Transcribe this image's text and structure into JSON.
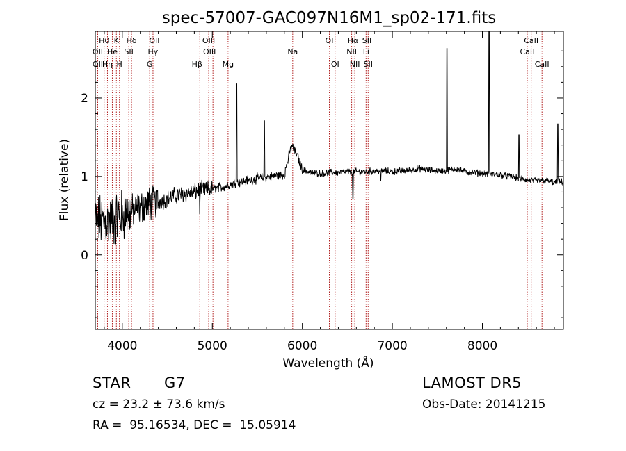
{
  "chart_data": {
    "type": "line",
    "title": "spec-57007-GAC097N16M1_sp02-171.fits",
    "xlabel": "Wavelength (Å)",
    "ylabel": "Flux (relative)",
    "xlim": [
      3700,
      8900
    ],
    "ylim": [
      -0.95,
      2.85
    ],
    "x_ticks": [
      4000,
      5000,
      6000,
      7000,
      8000
    ],
    "y_ticks": [
      0,
      1,
      2
    ],
    "grid": false,
    "line_color": "#000000",
    "marker_color": "#b22222",
    "continuum_anchors": [
      [
        3700,
        0.45
      ],
      [
        3800,
        0.42
      ],
      [
        3900,
        0.43
      ],
      [
        4000,
        0.52
      ],
      [
        4100,
        0.55
      ],
      [
        4200,
        0.6
      ],
      [
        4300,
        0.66
      ],
      [
        4400,
        0.68
      ],
      [
        4500,
        0.71
      ],
      [
        4600,
        0.76
      ],
      [
        4700,
        0.78
      ],
      [
        4800,
        0.8
      ],
      [
        4900,
        0.83
      ],
      [
        5000,
        0.84
      ],
      [
        5100,
        0.86
      ],
      [
        5200,
        0.9
      ],
      [
        5300,
        0.93
      ],
      [
        5400,
        0.95
      ],
      [
        5500,
        0.97
      ],
      [
        5600,
        0.99
      ],
      [
        5700,
        1.01
      ],
      [
        5800,
        1.02
      ],
      [
        5880,
        1.4
      ],
      [
        5950,
        1.25
      ],
      [
        6000,
        1.08
      ],
      [
        6100,
        1.05
      ],
      [
        6200,
        1.04
      ],
      [
        6300,
        1.05
      ],
      [
        6400,
        1.05
      ],
      [
        6500,
        1.06
      ],
      [
        6600,
        1.06
      ],
      [
        6700,
        1.06
      ],
      [
        6800,
        1.07
      ],
      [
        6900,
        1.07
      ],
      [
        7000,
        1.06
      ],
      [
        7100,
        1.07
      ],
      [
        7200,
        1.08
      ],
      [
        7300,
        1.1
      ],
      [
        7400,
        1.08
      ],
      [
        7500,
        1.07
      ],
      [
        7600,
        1.07
      ],
      [
        7700,
        1.1
      ],
      [
        7800,
        1.06
      ],
      [
        7900,
        1.05
      ],
      [
        8000,
        1.04
      ],
      [
        8100,
        1.03
      ],
      [
        8200,
        1.02
      ],
      [
        8300,
        1.0
      ],
      [
        8400,
        0.98
      ],
      [
        8500,
        0.95
      ],
      [
        8600,
        0.94
      ],
      [
        8700,
        0.95
      ],
      [
        8800,
        0.92
      ],
      [
        8900,
        0.93
      ]
    ],
    "spikes": [
      [
        5270,
        2.18
      ],
      [
        5578,
        1.71
      ],
      [
        7606,
        2.63
      ],
      [
        8075,
        2.85
      ],
      [
        8405,
        1.53
      ],
      [
        8838,
        1.67
      ],
      [
        4860,
        0.52
      ],
      [
        6563,
        0.72
      ],
      [
        6870,
        0.95
      ]
    ],
    "lines": [
      {
        "label": "Hθ",
        "x": 3798,
        "row": 1,
        "dx": 0
      },
      {
        "label": "K",
        "x": 3934,
        "row": 1,
        "dx": 0
      },
      {
        "label": "Hδ",
        "x": 4102,
        "row": 1,
        "dx": 0
      },
      {
        "label": "OII",
        "x": 4341,
        "row": 1,
        "dx": 2
      },
      {
        "label": "OIII",
        "x": 4960,
        "row": 1,
        "dx": 0
      },
      {
        "label": "OI",
        "x": 6300,
        "row": 1,
        "dx": 0
      },
      {
        "label": "Hα",
        "x": 6563,
        "row": 1,
        "dx": 0
      },
      {
        "label": "SII",
        "x": 6717,
        "row": 1,
        "dx": 0
      },
      {
        "label": "CaII",
        "x": 8542,
        "row": 1,
        "dx": 0
      },
      {
        "label": "OII",
        "x": 3727,
        "row": 2,
        "dx": 0
      },
      {
        "label": "He",
        "x": 3889,
        "row": 2,
        "dx": 0
      },
      {
        "label": "SII",
        "x": 4072,
        "row": 2,
        "dx": 0
      },
      {
        "label": "Hγ",
        "x": 4340,
        "row": 2,
        "dx": 0
      },
      {
        "label": "OIII",
        "x": 5007,
        "row": 2,
        "dx": -5
      },
      {
        "label": "Na",
        "x": 5893,
        "row": 2,
        "dx": 0
      },
      {
        "label": "NII",
        "x": 6548,
        "row": 2,
        "dx": 0
      },
      {
        "label": "Li",
        "x": 6708,
        "row": 2,
        "dx": 0
      },
      {
        "label": "CaII",
        "x": 8498,
        "row": 2,
        "dx": 0
      },
      {
        "label": "OII",
        "x": 3727,
        "row": 3,
        "dx": 0
      },
      {
        "label": "Hη",
        "x": 3835,
        "row": 3,
        "dx": 0
      },
      {
        "label": "H",
        "x": 3968,
        "row": 3,
        "dx": 0
      },
      {
        "label": "G",
        "x": 4304,
        "row": 3,
        "dx": 0
      },
      {
        "label": "Hβ",
        "x": 4861,
        "row": 3,
        "dx": -4
      },
      {
        "label": "Mg",
        "x": 5175,
        "row": 3,
        "dx": 0
      },
      {
        "label": "OI",
        "x": 6364,
        "row": 3,
        "dx": 0
      },
      {
        "label": "NII",
        "x": 6583,
        "row": 3,
        "dx": 0
      },
      {
        "label": "SII",
        "x": 6731,
        "row": 3,
        "dx": 0
      },
      {
        "label": "CaII",
        "x": 8662,
        "row": 3,
        "dx": 0
      }
    ]
  },
  "info": {
    "object_class": "STAR",
    "subclass": "G7",
    "survey": "LAMOST DR5",
    "cz": "cz = 23.2 ± 73.6 km/s",
    "obs_date": "Obs-Date: 20141215",
    "coords": "RA =  95.16534, DEC =  15.05914"
  }
}
